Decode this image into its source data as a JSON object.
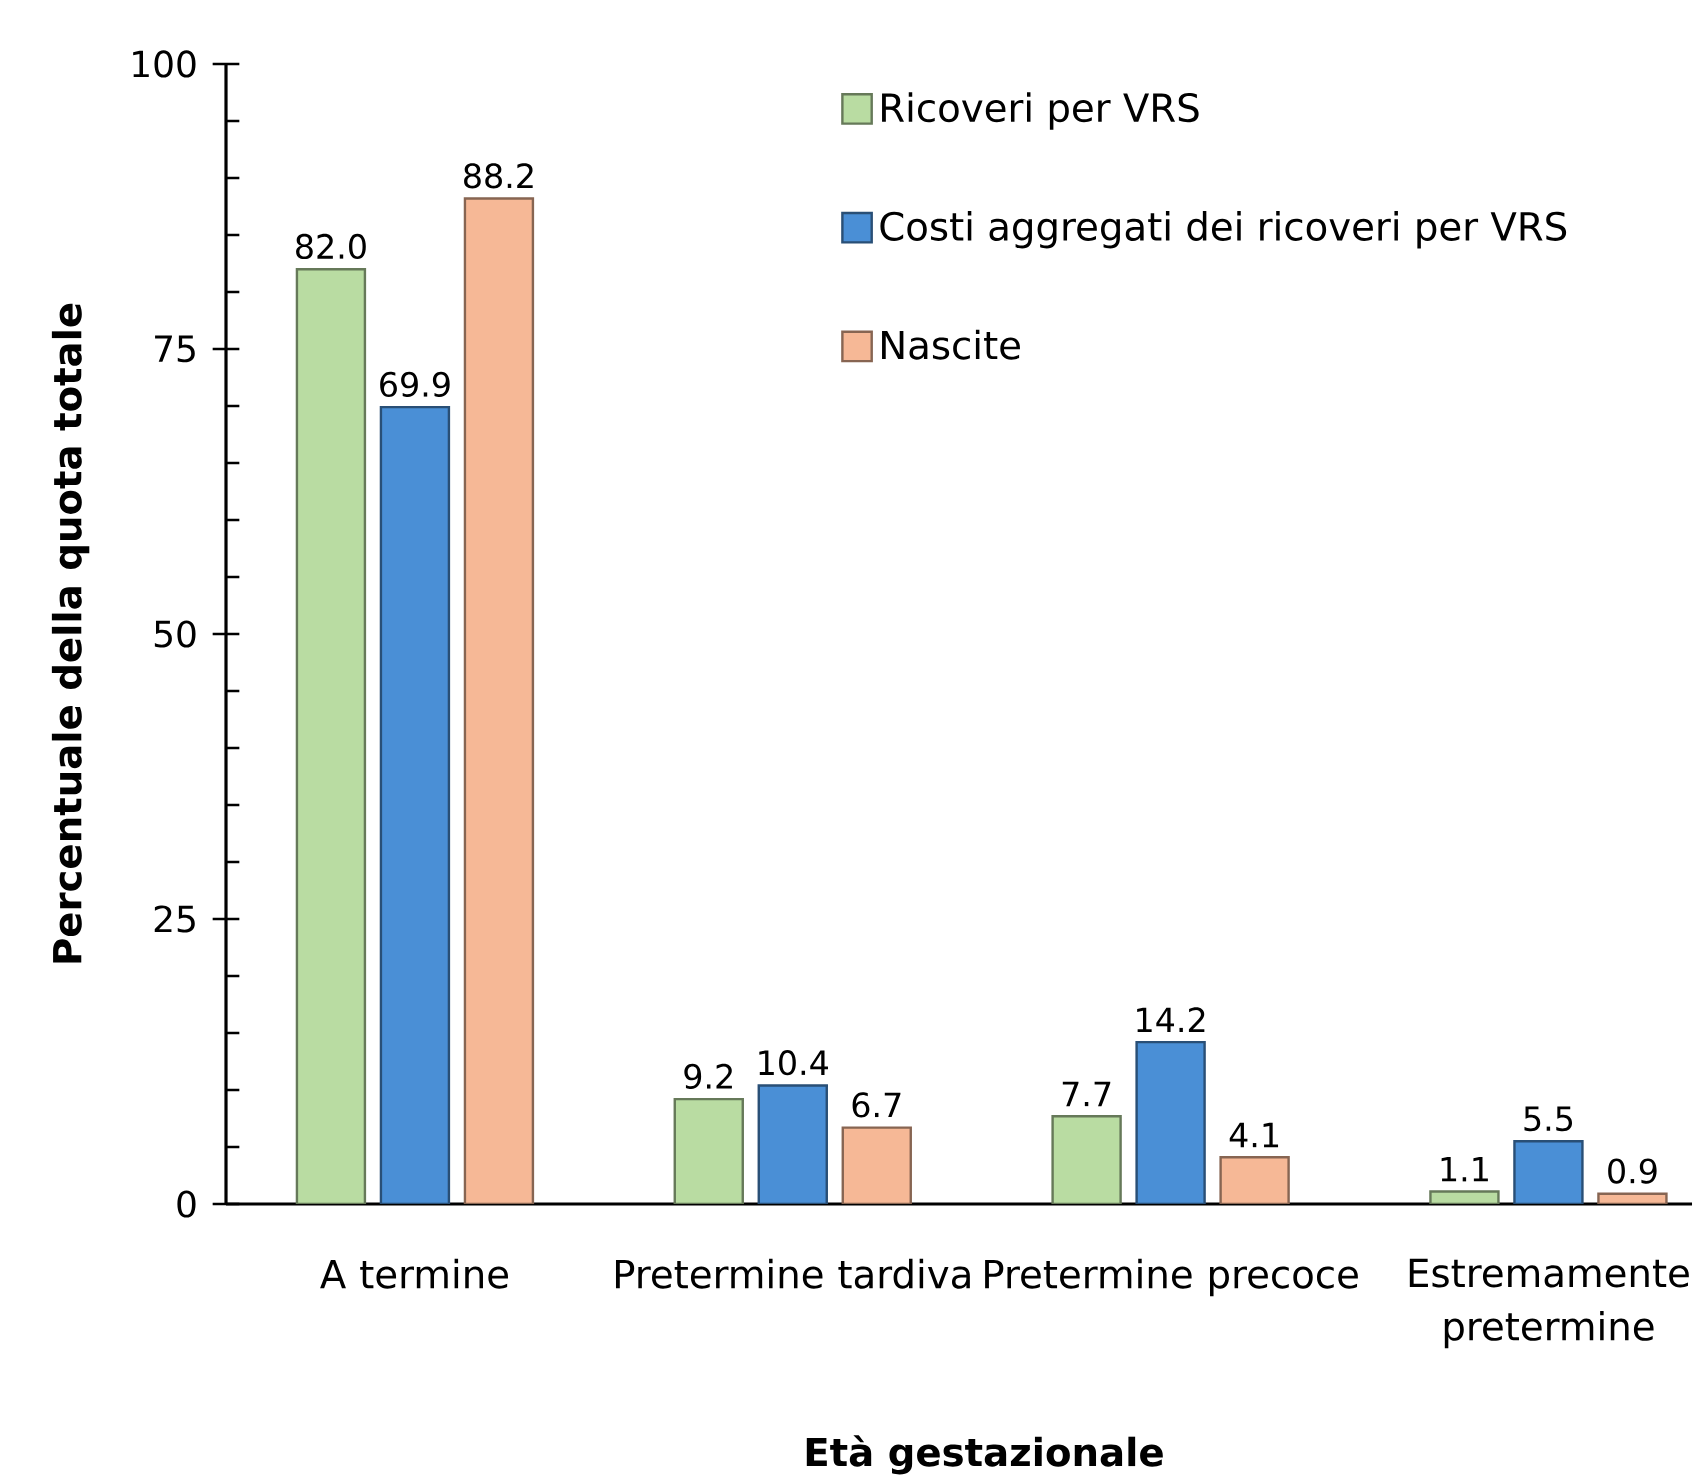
{
  "chart_data": {
    "type": "bar",
    "xlabel": "Età gestazionale",
    "ylabel": "Percentuale della quota totale",
    "categories": [
      "A termine",
      "Pretermine tardiva",
      "Pretermine precoce",
      "Estremamente pretermine"
    ],
    "series": [
      {
        "name": "Ricoveri per VRS",
        "color": "#b9dca2",
        "values": [
          82.0,
          9.2,
          7.7,
          1.1
        ],
        "value_labels": [
          "82.0",
          "9.2",
          "7.7",
          "1.1"
        ]
      },
      {
        "name": "Costi aggregati dei ricoveri per VRS",
        "color": "#4a8fd6",
        "values": [
          69.9,
          10.4,
          14.2,
          5.5
        ],
        "value_labels": [
          "69.9",
          "10.4",
          "14.2",
          "5.5"
        ]
      },
      {
        "name": "Nascite",
        "color": "#f6b896",
        "values": [
          88.2,
          6.7,
          4.1,
          0.9
        ],
        "value_labels": [
          "88.2",
          "6.7",
          "4.1",
          "0.9"
        ]
      }
    ],
    "ylim": [
      0,
      100
    ],
    "yticks": [
      0,
      {
        "value": 5,
        "label": null
      },
      {
        "value": 10,
        "label": null
      },
      {
        "value": 15,
        "label": null
      },
      {
        "value": 20,
        "label": null
      },
      25,
      {
        "value": 30,
        "label": null
      },
      {
        "value": 35,
        "label": null
      },
      {
        "value": 40,
        "label": null
      },
      {
        "value": 45,
        "label": null
      },
      50,
      {
        "value": 55,
        "label": null
      },
      {
        "value": 60,
        "label": null
      },
      {
        "value": 65,
        "label": null
      },
      {
        "value": 70,
        "label": null
      },
      75,
      {
        "value": 80,
        "label": null
      },
      {
        "value": 85,
        "label": null
      },
      {
        "value": 90,
        "label": null
      },
      {
        "value": 95,
        "label": null
      },
      100
    ],
    "legend": "top right"
  }
}
